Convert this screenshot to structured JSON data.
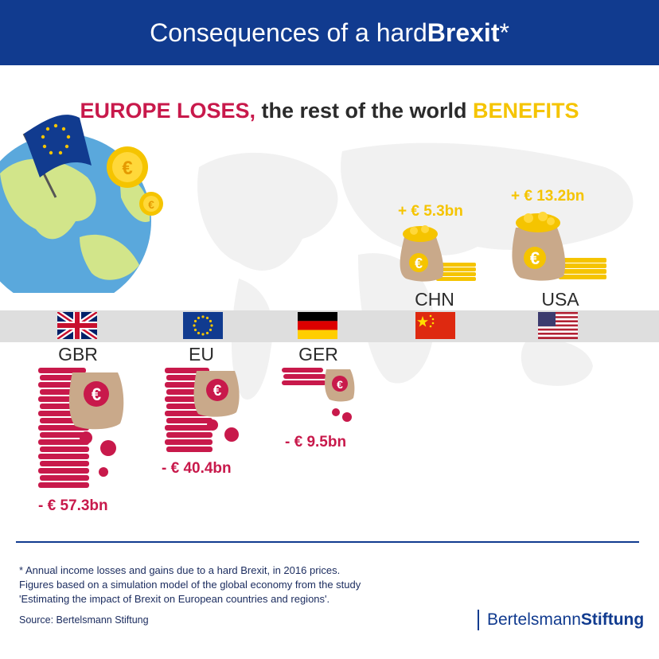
{
  "header": {
    "title_prefix": "Consequences of a hard ",
    "title_bold": "Brexit",
    "title_suffix": "*"
  },
  "subtitle": {
    "lose": "EUROPE LOSES,",
    "middle": " the rest of the world ",
    "win": "BENEFITS"
  },
  "losers": [
    {
      "code": "GBR",
      "amount": "- € 57.3bn",
      "icon": "uk-flag-icon"
    },
    {
      "code": "EU",
      "amount": "- € 40.4bn",
      "icon": "eu-flag-icon"
    },
    {
      "code": "GER",
      "amount": "- € 9.5bn",
      "icon": "germany-flag-icon"
    }
  ],
  "winners": [
    {
      "code": "CHN",
      "amount": "+ € 5.3bn",
      "icon": "china-flag-icon"
    },
    {
      "code": "USA",
      "amount": "+ € 13.2bn",
      "icon": "usa-flag-icon"
    }
  ],
  "colors": {
    "brand_blue": "#113b8f",
    "loss_red": "#c8194b",
    "gain_yellow": "#f5c400"
  },
  "footnote": {
    "line1": "* Annual income losses and gains due to a hard Brexit, in 2016 prices.",
    "line2": "Figures based on a simulation model of the global economy from the study",
    "line3": "'Estimating the impact of Brexit on European countries and regions'."
  },
  "source": "Source: Bertelsmann Stiftung",
  "logo": {
    "regular": "Bertelsmann",
    "bold": "Stiftung"
  }
}
